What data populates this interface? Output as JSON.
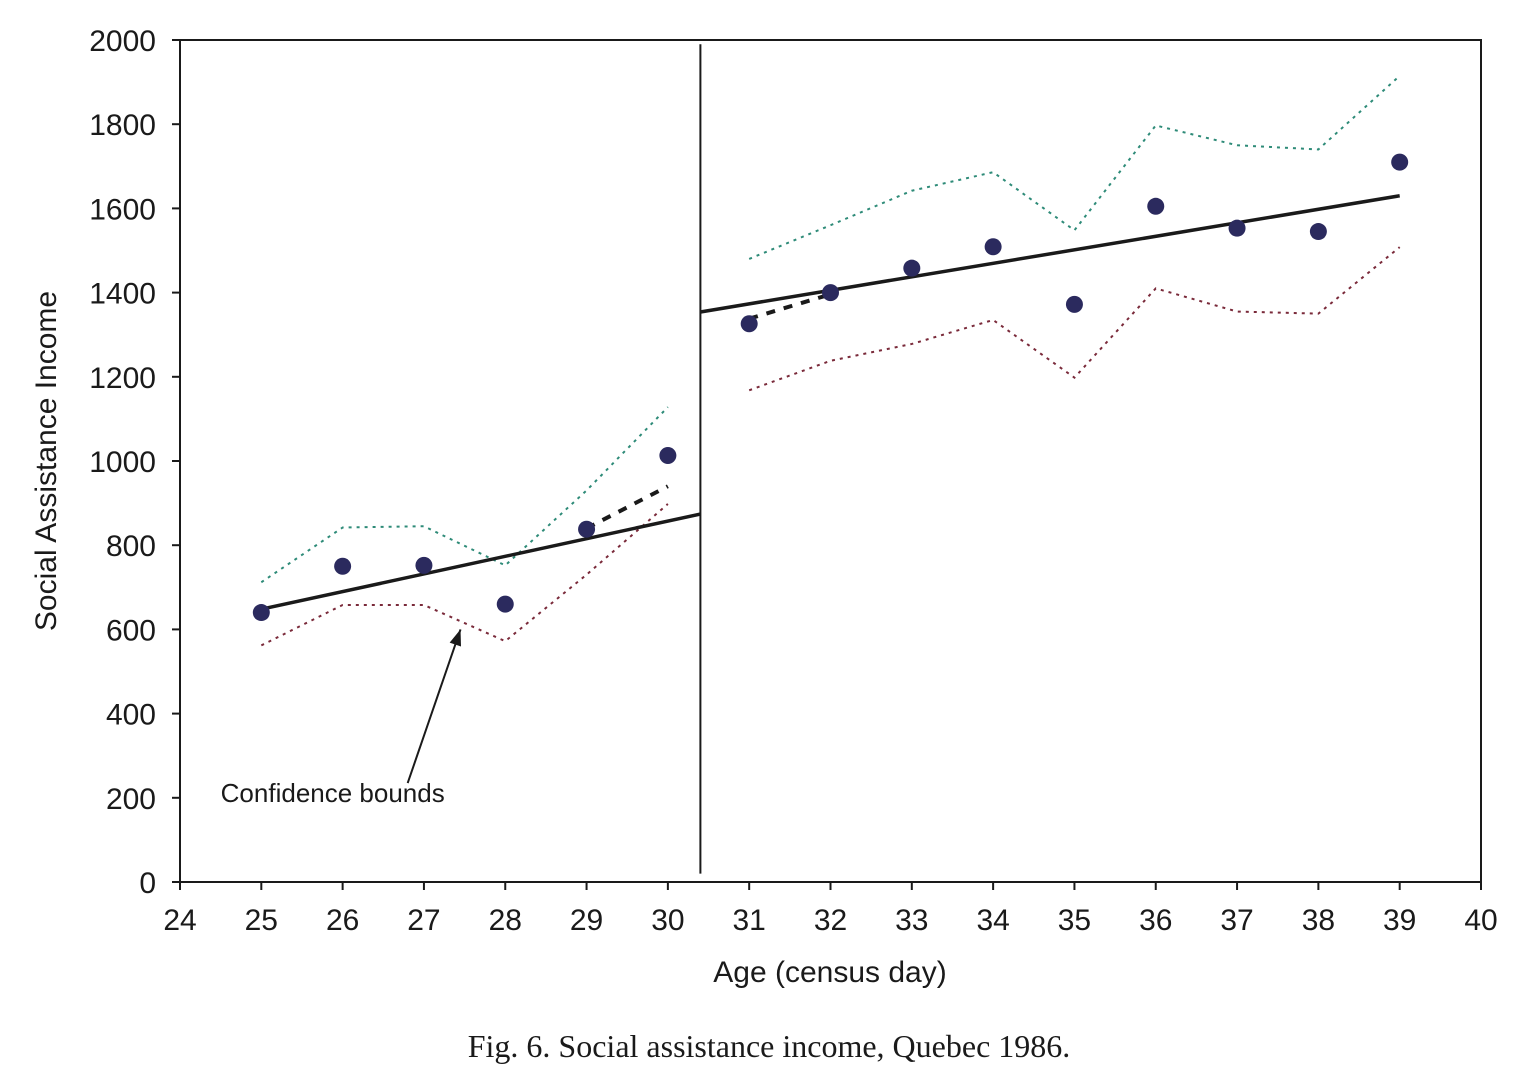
{
  "caption": "Fig. 6.  Social assistance income, Quebec 1986.",
  "chart_data": {
    "type": "scatter",
    "title": "",
    "xlabel": "Age (census day)",
    "ylabel": "Social Assistance Income",
    "xlim": [
      24,
      40
    ],
    "ylim": [
      0,
      2000
    ],
    "x_ticks": [
      24,
      25,
      26,
      27,
      28,
      29,
      30,
      31,
      32,
      33,
      34,
      35,
      36,
      37,
      38,
      39,
      40
    ],
    "y_ticks": [
      0,
      200,
      400,
      600,
      800,
      1000,
      1200,
      1400,
      1600,
      1800,
      2000
    ],
    "grid": false,
    "legend": "none",
    "cutoff_x": 30.4,
    "points": {
      "x": [
        25,
        26,
        27,
        28,
        29,
        30,
        31,
        32,
        33,
        34,
        35,
        36,
        37,
        38,
        39
      ],
      "y": [
        640,
        750,
        752,
        660,
        838,
        1013,
        1326,
        1400,
        1458,
        1509,
        1372,
        1605,
        1553,
        1545,
        1710
      ],
      "color": "#2b2a5e"
    },
    "fit_left": {
      "x": [
        25,
        30.4
      ],
      "y": [
        648,
        874
      ]
    },
    "fit_right": {
      "x": [
        30.4,
        39
      ],
      "y": [
        1354,
        1630
      ]
    },
    "dashed_left": {
      "x": [
        29,
        30
      ],
      "y": [
        840,
        940
      ]
    },
    "dashed_right": {
      "x": [
        31,
        32
      ],
      "y": [
        1338,
        1396
      ]
    },
    "upper_bound": {
      "color": "#2e8b78",
      "left": {
        "x": [
          25,
          26,
          27,
          28,
          29,
          30
        ],
        "y": [
          712,
          842,
          845,
          752,
          930,
          1128
        ]
      },
      "right": {
        "x": [
          31,
          32,
          33,
          34,
          35,
          36,
          37,
          38,
          39
        ],
        "y": [
          1480,
          1560,
          1642,
          1686,
          1548,
          1797,
          1750,
          1740,
          1915
        ]
      }
    },
    "lower_bound": {
      "color": "#7a2a3a",
      "left": {
        "x": [
          25,
          26,
          27,
          28,
          29,
          30
        ],
        "y": [
          562,
          658,
          658,
          572,
          730,
          898
        ]
      },
      "right": {
        "x": [
          31,
          32,
          33,
          34,
          35,
          36,
          37,
          38,
          39
        ],
        "y": [
          1168,
          1238,
          1278,
          1335,
          1198,
          1410,
          1355,
          1350,
          1508
        ]
      }
    },
    "annotation": {
      "text": "Confidence bounds",
      "text_at": {
        "x": 24.5,
        "y": 190
      },
      "arrow_from": {
        "x": 26.8,
        "y": 235
      },
      "arrow_to": {
        "x": 27.45,
        "y": 600
      }
    }
  }
}
